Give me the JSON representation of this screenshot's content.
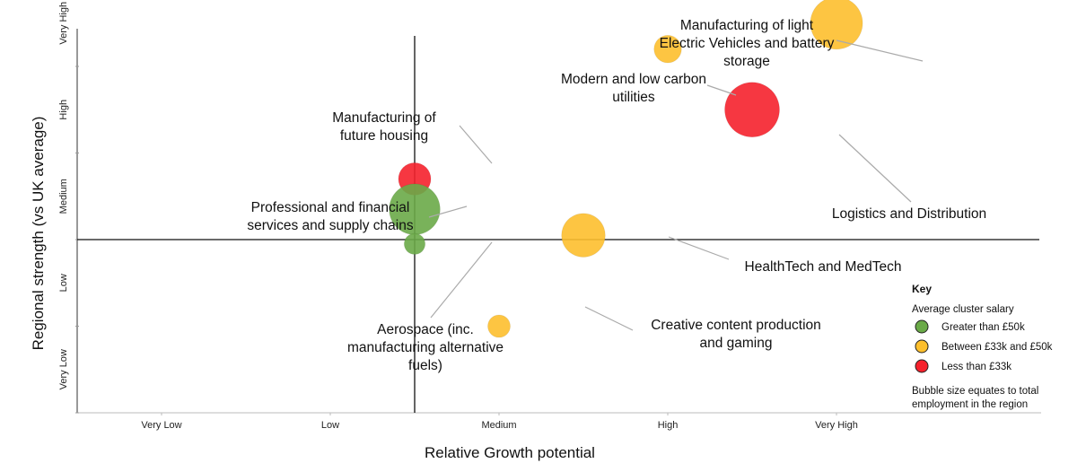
{
  "chart_data": {
    "type": "scatter",
    "subtype": "bubble",
    "xlabel": "Relative Growth potential",
    "ylabel": "Regional strength (vs UK average)",
    "x_categories": [
      "Very Low",
      "Low",
      "Medium",
      "High",
      "Very High"
    ],
    "y_categories": [
      "Very Low",
      "Low",
      "Medium",
      "High",
      "Very High"
    ],
    "xlim": [
      0,
      5.5
    ],
    "ylim": [
      0,
      5.5
    ],
    "crosshair": {
      "x": 2.5,
      "y": 2.5
    },
    "bubbles": [
      {
        "label": "Manufacturing of light Electric Vehicles and battery storage",
        "label_lines": [
          "Manufacturing of light",
          "Electric Vehicles and battery",
          "storage"
        ],
        "x": 5.0,
        "y": 5.0,
        "size": 90,
        "salary_band": "between"
      },
      {
        "label": "Modern and low carbon utilities",
        "label_lines": [
          "Modern and low carbon",
          "utilities"
        ],
        "x": 4.0,
        "y": 4.7,
        "size": 20,
        "salary_band": "between"
      },
      {
        "label": "Logistics and Distribution",
        "label_lines": [
          "Logistics and Distribution"
        ],
        "x": 4.5,
        "y": 4.0,
        "size": 100,
        "salary_band": "less"
      },
      {
        "label": "Manufacturing of future housing",
        "label_lines": [
          "Manufacturing of",
          "future housing"
        ],
        "x": 2.5,
        "y": 3.2,
        "size": 30,
        "salary_band": "less"
      },
      {
        "label": "Professional and financial services and supply chains",
        "label_lines": [
          "Professional and financial",
          "services and supply chains"
        ],
        "x": 2.5,
        "y": 2.85,
        "size": 85,
        "salary_band": "greater"
      },
      {
        "label": "Aerospace (inc. manufacturing alternative fuels)",
        "label_lines": [
          "Aerospace (inc.",
          "manufacturing alternative",
          "fuels)"
        ],
        "x": 2.5,
        "y": 2.45,
        "size": 10,
        "salary_band": "greater"
      },
      {
        "label": "HealthTech and MedTech",
        "label_lines": [
          "HealthTech and MedTech"
        ],
        "x": 3.5,
        "y": 2.55,
        "size": 60,
        "salary_band": "between"
      },
      {
        "label": "Creative content production and gaming",
        "label_lines": [
          "Creative content production",
          "and gaming"
        ],
        "x": 3.0,
        "y": 1.5,
        "size": 12,
        "salary_band": "between"
      }
    ],
    "legend": {
      "title": "Key",
      "subtitle": "Average cluster salary",
      "placement": "bottom-right",
      "entries": [
        {
          "key": "greater",
          "label": "Greater than £50k",
          "color": "#6aaa48"
        },
        {
          "key": "between",
          "label": "Between £33k and £50k",
          "color": "#fdbf2d"
        },
        {
          "key": "less",
          "label": "Less than £33k",
          "color": "#f5212c"
        }
      ],
      "note_lines": [
        "Bubble size equates to total",
        "employment in the region"
      ]
    },
    "grid": false
  }
}
